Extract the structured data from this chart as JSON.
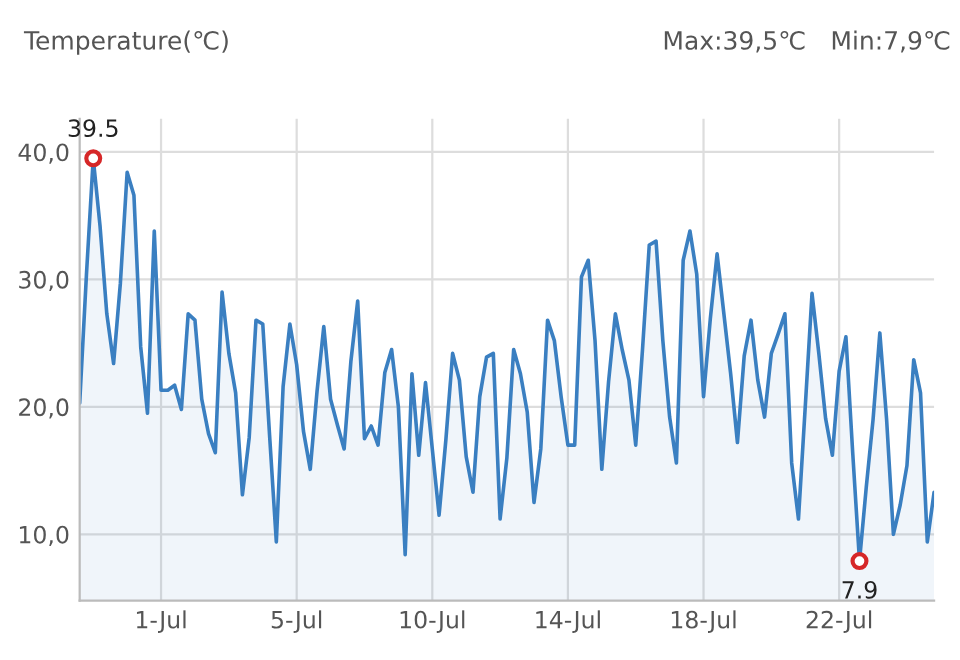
{
  "chart_data": {
    "type": "area",
    "title": "Temperature(℃)",
    "annotations": [
      "Max:39,5℃",
      "Min:7,9℃",
      {
        "text": "39.5",
        "y": 39.5
      },
      {
        "text": "7.9",
        "y": 7.9
      }
    ],
    "categories": [
      null,
      null,
      null,
      null,
      null,
      null,
      null,
      null,
      null,
      null,
      null,
      null,
      "1-Jul",
      null,
      null,
      null,
      null,
      null,
      null,
      null,
      null,
      null,
      null,
      null,
      null,
      null,
      null,
      null,
      null,
      null,
      null,
      null,
      "5-Jul",
      null,
      null,
      null,
      null,
      null,
      null,
      null,
      null,
      null,
      null,
      null,
      null,
      null,
      null,
      null,
      null,
      null,
      null,
      null,
      "10-Jul",
      null,
      null,
      null,
      null,
      null,
      null,
      null,
      null,
      null,
      null,
      null,
      null,
      null,
      null,
      null,
      null,
      null,
      null,
      null,
      "14-Jul",
      null,
      null,
      null,
      null,
      null,
      null,
      null,
      null,
      null,
      null,
      null,
      null,
      null,
      null,
      null,
      null,
      null,
      null,
      null,
      "18-Jul",
      null,
      null,
      null,
      null,
      null,
      null,
      null,
      null,
      null,
      null,
      null,
      null,
      null,
      null,
      null,
      null,
      null,
      null,
      null,
      "22-Jul",
      null,
      null,
      null,
      null,
      null,
      null,
      null,
      null,
      null,
      null,
      null,
      null,
      null,
      null
    ],
    "series": [
      {
        "color": "#3a7fc1",
        "values": [
          20.3,
          30.4,
          39.5,
          34.2,
          27.3,
          23.4,
          29.7,
          38.4,
          36.6,
          24.7,
          19.5,
          33.8,
          21.3,
          21.3,
          21.7,
          19.8,
          27.3,
          26.8,
          20.6,
          17.9,
          16.4,
          29.0,
          24.2,
          21.1,
          13.1,
          17.6,
          26.8,
          26.5,
          17.8,
          9.4,
          21.6,
          26.5,
          23.3,
          18.1,
          15.1,
          21.2,
          26.3,
          20.6,
          18.6,
          16.7,
          23.6,
          28.3,
          17.5,
          18.5,
          17.0,
          22.7,
          24.5,
          20.0,
          8.4,
          22.6,
          16.2,
          21.9,
          16.7,
          11.5,
          17.4,
          24.2,
          22.1,
          16.1,
          13.3,
          20.8,
          23.9,
          24.2,
          11.2,
          16.0,
          24.5,
          22.6,
          19.6,
          12.5,
          16.7,
          26.8,
          25.2,
          20.8,
          17.0,
          17.0,
          30.2,
          31.5,
          25.2,
          15.1,
          22.0,
          27.3,
          24.5,
          22.1,
          17.0,
          24.5,
          32.7,
          33.0,
          25.2,
          19.2,
          15.6,
          31.5,
          33.8,
          30.4,
          20.8,
          26.9,
          32.0,
          27.3,
          22.6,
          17.2,
          24.0,
          26.8,
          22.1,
          19.2,
          24.2,
          25.7,
          27.3,
          15.6,
          11.2,
          20.0,
          28.9,
          24.2,
          19.1,
          16.2,
          22.8,
          25.5,
          16.4,
          7.9,
          13.7,
          19.0,
          25.8,
          19.0,
          10.0,
          12.3,
          15.4,
          23.7,
          21.1,
          9.4,
          13.3
        ]
      }
    ],
    "ylim": [
      4.8,
      42.6
    ],
    "yticks": [
      {
        "value": 10,
        "label": "10,0"
      },
      {
        "value": 20,
        "label": "20,0"
      },
      {
        "value": 30,
        "label": "30,0"
      },
      {
        "value": 40,
        "label": "40,0"
      }
    ],
    "grid": true,
    "line_style": "solid"
  }
}
